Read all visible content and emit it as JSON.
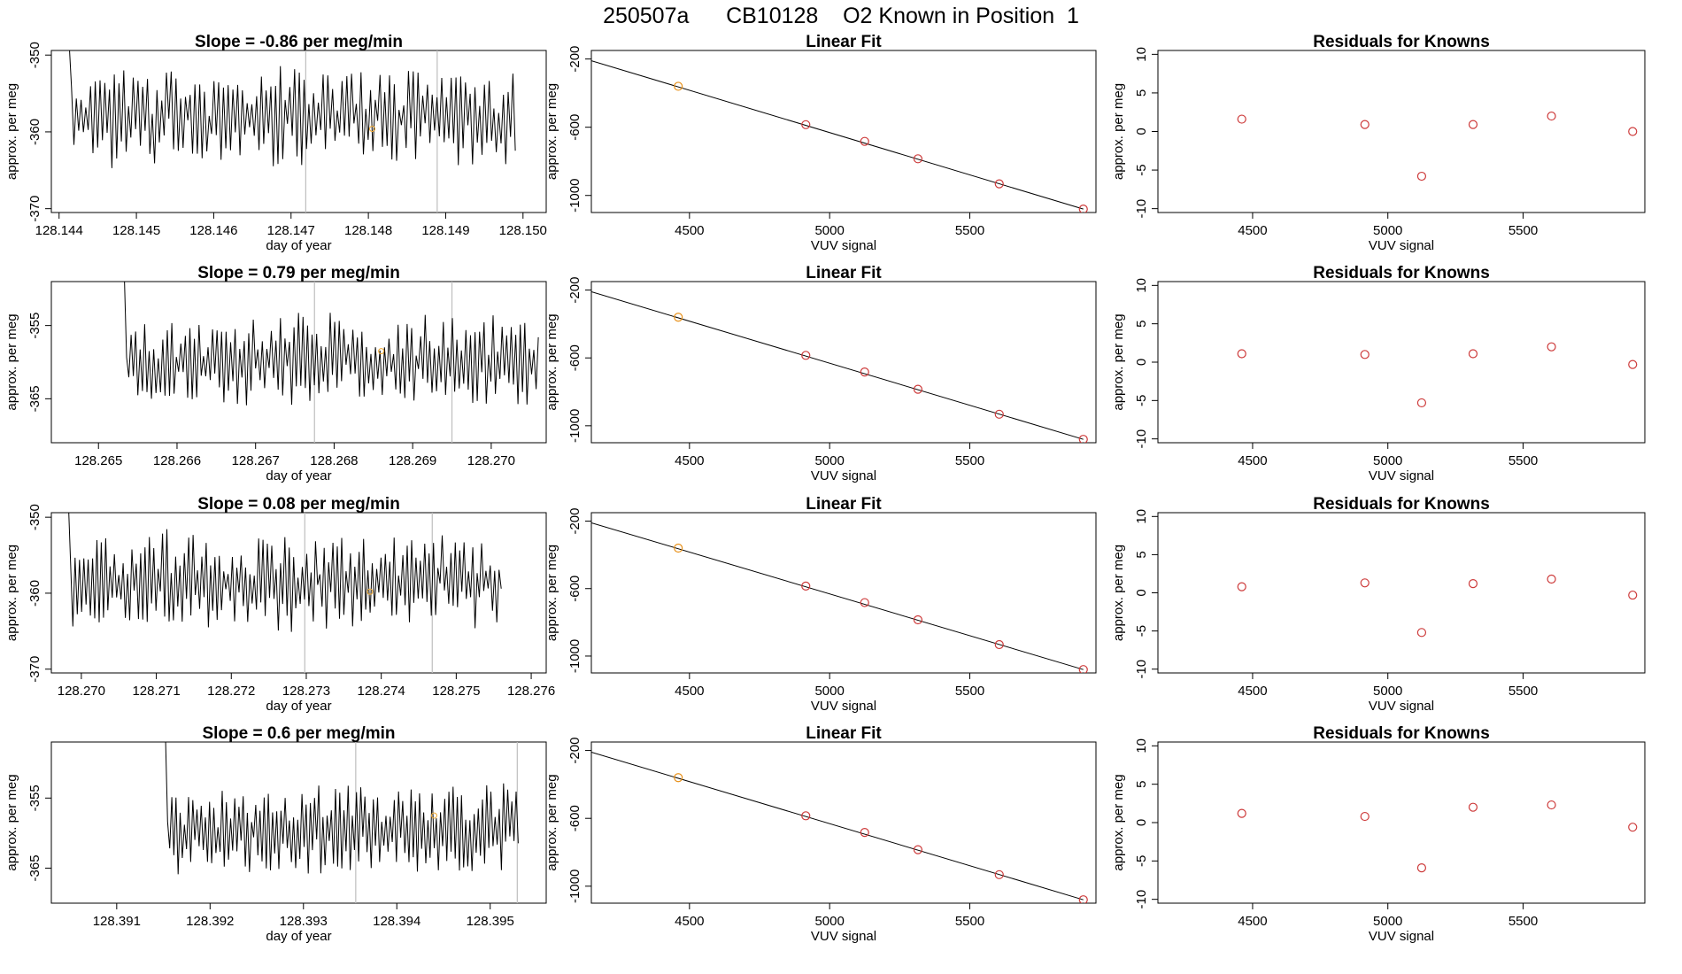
{
  "page": {
    "title": "250507a      CB10128    O2 Known in Position  1"
  },
  "colors": {
    "line": "#000000",
    "frame": "#000000",
    "vline": "#bebebe",
    "resid_point": "#cd3a3a",
    "first_point": "#e8911a",
    "ts_marker": "#f0a830"
  },
  "chart_data": [
    {
      "type": "line",
      "row": 1,
      "title": "Slope =  -0.86  per meg/min",
      "xlabel": "day of year",
      "ylabel": "approx. per meg",
      "xlim": [
        128.1439,
        128.1503
      ],
      "ylim": [
        -370.5,
        -349.4
      ],
      "xticks": [
        "128.144",
        "128.145",
        "128.146",
        "128.147",
        "128.148",
        "128.149",
        "128.150"
      ],
      "yticks": [
        "-350",
        "-360",
        "-370"
      ],
      "vlines": [
        128.14719,
        128.14889
      ],
      "marker": [
        128.14805,
        -359.6
      ],
      "series": [
        {
          "name": "trace",
          "start": 128.1441,
          "end": 128.1499,
          "n": 190,
          "base": -358,
          "amp": 4.5,
          "noise": 5,
          "seed": 11
        }
      ]
    },
    {
      "type": "line",
      "row": 1,
      "title": "Linear Fit",
      "xlabel": "VUV signal",
      "ylabel": "approx. per meg",
      "xlim": [
        4150,
        5950
      ],
      "ylim": [
        -1100,
        -150
      ],
      "xticks": [
        "4500",
        "5000",
        "5500"
      ],
      "yticks": [
        "-200",
        "-600",
        "-1000"
      ],
      "fit": [
        [
          4150,
          -210
        ],
        [
          5905,
          -1080
        ]
      ],
      "points": [
        [
          4460,
          -360
        ],
        [
          4915,
          -585
        ],
        [
          5125,
          -683
        ],
        [
          5315,
          -785
        ],
        [
          5605,
          -932
        ],
        [
          5905,
          -1080
        ]
      ]
    },
    {
      "type": "scatter",
      "row": 1,
      "title": "Residuals for Knowns",
      "xlabel": "VUV signal",
      "ylabel": "approx. per meg",
      "xlim": [
        4150,
        5950
      ],
      "ylim": [
        -10.5,
        10.5
      ],
      "xticks": [
        "4500",
        "5000",
        "5500"
      ],
      "yticks": [
        "10",
        "5",
        "0",
        "-5",
        "-10"
      ],
      "points": [
        [
          4460,
          1.6
        ],
        [
          4915,
          0.9
        ],
        [
          5125,
          -5.8
        ],
        [
          5315,
          0.9
        ],
        [
          5605,
          2.0
        ],
        [
          5905,
          0.0
        ]
      ]
    },
    {
      "type": "line",
      "row": 2,
      "title": "Slope =  0.79  per meg/min",
      "xlabel": "day of year",
      "ylabel": "approx. per meg",
      "xlim": [
        128.2644,
        128.2707
      ],
      "ylim": [
        -371,
        -349
      ],
      "xticks": [
        "128.265",
        "128.266",
        "128.267",
        "128.268",
        "128.269",
        "128.270"
      ],
      "yticks": [
        "-355",
        "-365"
      ],
      "vlines": [
        128.26775,
        128.2695
      ],
      "marker": [
        128.2686,
        -358.5
      ],
      "series": [
        {
          "name": "trace",
          "start": 128.2653,
          "end": 128.2706,
          "n": 185,
          "base": -360,
          "amp": 4.5,
          "noise": 5,
          "seed": 23
        }
      ]
    },
    {
      "type": "line",
      "row": 2,
      "title": "Linear Fit",
      "xlabel": "VUV signal",
      "ylabel": "approx. per meg",
      "xlim": [
        4150,
        5950
      ],
      "ylim": [
        -1100,
        -150
      ],
      "xticks": [
        "4500",
        "5000",
        "5500"
      ],
      "yticks": [
        "-200",
        "-600",
        "-1000"
      ],
      "fit": [
        [
          4150,
          -210
        ],
        [
          5905,
          -1080
        ]
      ],
      "points": [
        [
          4460,
          -360
        ],
        [
          4915,
          -585
        ],
        [
          5125,
          -683
        ],
        [
          5315,
          -785
        ],
        [
          5605,
          -932
        ],
        [
          5905,
          -1080
        ]
      ]
    },
    {
      "type": "scatter",
      "row": 2,
      "title": "Residuals for Knowns",
      "xlabel": "VUV signal",
      "ylabel": "approx. per meg",
      "xlim": [
        4150,
        5950
      ],
      "ylim": [
        -10.5,
        10.5
      ],
      "xticks": [
        "4500",
        "5000",
        "5500"
      ],
      "yticks": [
        "10",
        "5",
        "0",
        "-5",
        "-10"
      ],
      "points": [
        [
          4460,
          1.1
        ],
        [
          4915,
          1.0
        ],
        [
          5125,
          -5.3
        ],
        [
          5315,
          1.1
        ],
        [
          5605,
          2.0
        ],
        [
          5905,
          -0.3
        ]
      ]
    },
    {
      "type": "line",
      "row": 3,
      "title": "Slope =  0.08  per meg/min",
      "xlabel": "day of year",
      "ylabel": "approx. per meg",
      "xlim": [
        128.2696,
        128.2762
      ],
      "ylim": [
        -370.5,
        -349.4
      ],
      "xticks": [
        "128.270",
        "128.271",
        "128.272",
        "128.273",
        "128.274",
        "128.275",
        "128.276"
      ],
      "yticks": [
        "-350",
        "-360",
        "-370"
      ],
      "vlines": [
        128.27298,
        128.27468
      ],
      "marker": [
        128.27385,
        -359.8
      ],
      "series": [
        {
          "name": "trace",
          "start": 128.2698,
          "end": 128.2756,
          "n": 200,
          "base": -358.5,
          "amp": 4.5,
          "noise": 5,
          "seed": 37
        }
      ]
    },
    {
      "type": "line",
      "row": 3,
      "title": "Linear Fit",
      "xlabel": "VUV signal",
      "ylabel": "approx. per meg",
      "xlim": [
        4150,
        5950
      ],
      "ylim": [
        -1100,
        -150
      ],
      "xticks": [
        "4500",
        "5000",
        "5500"
      ],
      "yticks": [
        "-200",
        "-600",
        "-1000"
      ],
      "fit": [
        [
          4150,
          -210
        ],
        [
          5905,
          -1080
        ]
      ],
      "points": [
        [
          4460,
          -360
        ],
        [
          4915,
          -585
        ],
        [
          5125,
          -683
        ],
        [
          5315,
          -785
        ],
        [
          5605,
          -932
        ],
        [
          5905,
          -1080
        ]
      ]
    },
    {
      "type": "scatter",
      "row": 3,
      "title": "Residuals for Knowns",
      "xlabel": "VUV signal",
      "ylabel": "approx. per meg",
      "xlim": [
        4150,
        5950
      ],
      "ylim": [
        -10.5,
        10.5
      ],
      "xticks": [
        "4500",
        "5000",
        "5500"
      ],
      "yticks": [
        "10",
        "5",
        "0",
        "-5",
        "-10"
      ],
      "points": [
        [
          4460,
          0.8
        ],
        [
          4915,
          1.3
        ],
        [
          5125,
          -5.2
        ],
        [
          5315,
          1.2
        ],
        [
          5605,
          1.8
        ],
        [
          5905,
          -0.3
        ]
      ]
    },
    {
      "type": "line",
      "row": 4,
      "title": "Slope =  0.6  per meg/min",
      "xlabel": "day of year",
      "ylabel": "approx. per meg",
      "xlim": [
        128.3903,
        128.3956
      ],
      "ylim": [
        -370,
        -347
      ],
      "xticks": [
        "128.391",
        "128.392",
        "128.393",
        "128.394",
        "128.395"
      ],
      "yticks": [
        "-355",
        "-365"
      ],
      "vlines": [
        128.39356,
        128.39529
      ],
      "marker": [
        128.3944,
        -357.5
      ],
      "series": [
        {
          "name": "trace",
          "start": 128.3915,
          "end": 128.3953,
          "n": 170,
          "base": -359.5,
          "amp": 4.5,
          "noise": 5,
          "seed": 51
        }
      ]
    },
    {
      "type": "line",
      "row": 4,
      "title": "Linear Fit",
      "xlabel": "VUV signal",
      "ylabel": "approx. per meg",
      "xlim": [
        4150,
        5950
      ],
      "ylim": [
        -1100,
        -150
      ],
      "xticks": [
        "4500",
        "5000",
        "5500"
      ],
      "yticks": [
        "-200",
        "-600",
        "-1000"
      ],
      "fit": [
        [
          4150,
          -210
        ],
        [
          5905,
          -1080
        ]
      ],
      "points": [
        [
          4460,
          -360
        ],
        [
          4915,
          -585
        ],
        [
          5125,
          -683
        ],
        [
          5315,
          -785
        ],
        [
          5605,
          -932
        ],
        [
          5905,
          -1080
        ]
      ]
    },
    {
      "type": "scatter",
      "row": 4,
      "title": "Residuals for Knowns",
      "xlabel": "VUV signal",
      "ylabel": "approx. per meg",
      "xlim": [
        4150,
        5950
      ],
      "ylim": [
        -10.5,
        10.5
      ],
      "xticks": [
        "4500",
        "5000",
        "5500"
      ],
      "yticks": [
        "10",
        "5",
        "0",
        "-5",
        "-10"
      ],
      "points": [
        [
          4460,
          1.2
        ],
        [
          4915,
          0.8
        ],
        [
          5125,
          -5.9
        ],
        [
          5315,
          2.0
        ],
        [
          5605,
          2.3
        ],
        [
          5905,
          -0.6
        ]
      ]
    }
  ]
}
